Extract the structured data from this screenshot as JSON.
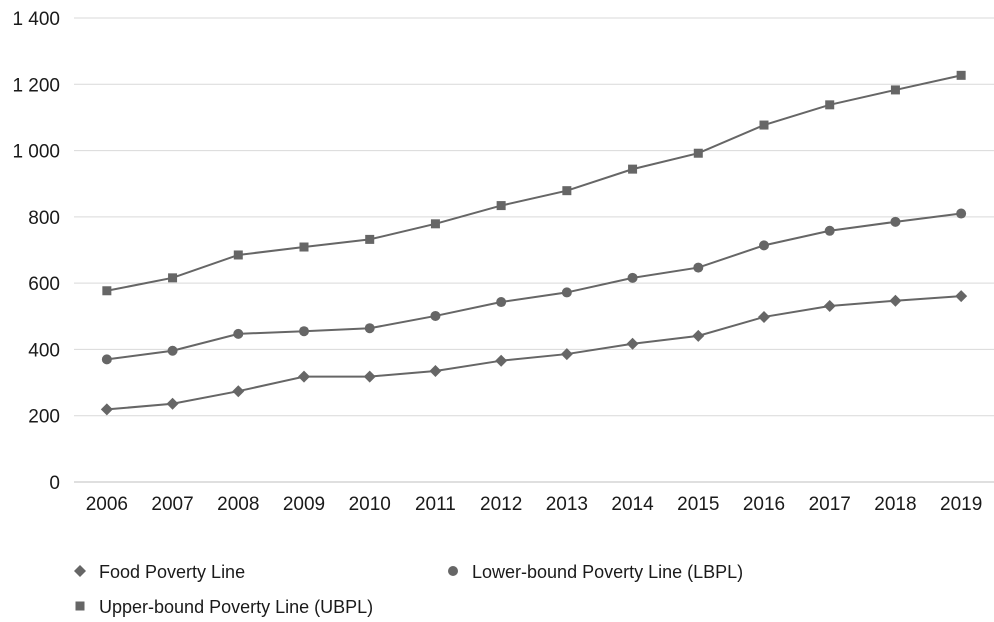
{
  "chart_data": {
    "type": "line",
    "title": "",
    "xlabel": "",
    "ylabel": "",
    "x": [
      "2006",
      "2007",
      "2008",
      "2009",
      "2010",
      "2011",
      "2012",
      "2013",
      "2014",
      "2015",
      "2016",
      "2017",
      "2018",
      "2019"
    ],
    "ylim": [
      0,
      1400
    ],
    "yticks": [
      0,
      200,
      400,
      600,
      800,
      1000,
      1200,
      1400
    ],
    "ytick_labels": [
      "0",
      "200",
      "400",
      "600",
      "800",
      "1 000",
      "1 200",
      "1 400"
    ],
    "grid": true,
    "legend_position": "bottom",
    "series": [
      {
        "name": "Food Poverty Line",
        "marker": "diamond",
        "color": "#666666",
        "values": [
          219,
          236,
          274,
          318,
          318,
          335,
          366,
          386,
          417,
          441,
          498,
          531,
          547,
          561
        ]
      },
      {
        "name": "Lower-bound Poverty Line (LBPL)",
        "marker": "circle",
        "color": "#666666",
        "values": [
          370,
          396,
          447,
          455,
          464,
          501,
          543,
          572,
          616,
          647,
          714,
          758,
          785,
          810
        ]
      },
      {
        "name": "Upper-bound Poverty Line (UBPL)",
        "marker": "square",
        "color": "#666666",
        "values": [
          577,
          616,
          685,
          709,
          732,
          779,
          834,
          879,
          944,
          992,
          1077,
          1138,
          1183,
          1227
        ]
      }
    ]
  }
}
